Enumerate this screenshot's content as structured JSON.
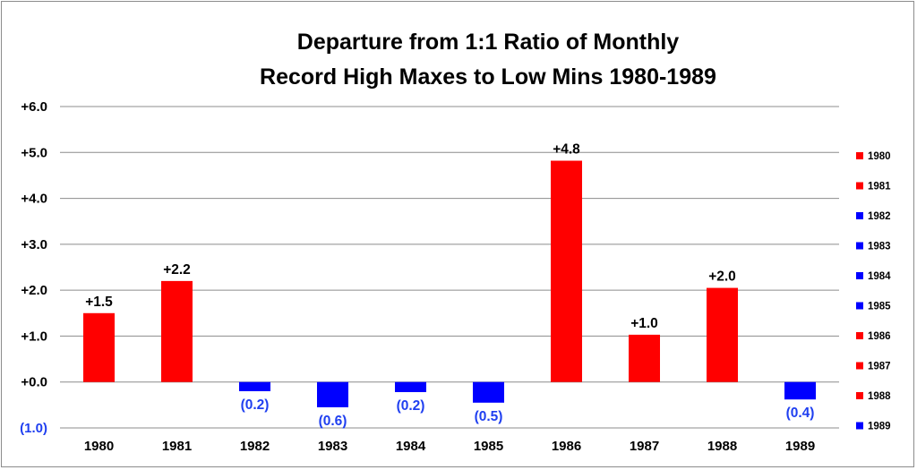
{
  "chart_data": {
    "type": "bar",
    "title_lines": [
      "Departure from 1:1 Ratio of Monthly",
      "Record High Maxes to Low Mins 1980-1989"
    ],
    "categories": [
      "1980",
      "1981",
      "1982",
      "1983",
      "1984",
      "1985",
      "1986",
      "1987",
      "1988",
      "1989"
    ],
    "values": [
      1.5,
      2.2,
      -0.2,
      -0.55,
      -0.22,
      -0.45,
      4.82,
      1.03,
      2.05,
      -0.38
    ],
    "data_labels": [
      "+1.5",
      "+2.2",
      "(0.2)",
      "(0.6)",
      "(0.2)",
      "(0.5)",
      "+4.8",
      "+1.0",
      "+2.0",
      "(0.4)"
    ],
    "y_ticks": [
      {
        "value": 6,
        "label": "+6.0"
      },
      {
        "value": 5,
        "label": "+5.0"
      },
      {
        "value": 4,
        "label": "+4.0"
      },
      {
        "value": 3,
        "label": "+3.0"
      },
      {
        "value": 2,
        "label": "+2.0"
      },
      {
        "value": 1,
        "label": "+1.0"
      },
      {
        "value": 0,
        "label": "+0.0"
      },
      {
        "value": -1,
        "label": "(1.0)"
      }
    ],
    "ylim": [
      -1,
      6
    ],
    "grid": true,
    "legend_position": "right",
    "legend": [
      "1980",
      "1981",
      "1982",
      "1983",
      "1984",
      "1985",
      "1986",
      "1987",
      "1988",
      "1989"
    ],
    "colors": {
      "positive": "#ff0000",
      "negative": "#0000ff",
      "grid": "#8c8c8c",
      "negative_label": "#1f3ff0"
    }
  }
}
